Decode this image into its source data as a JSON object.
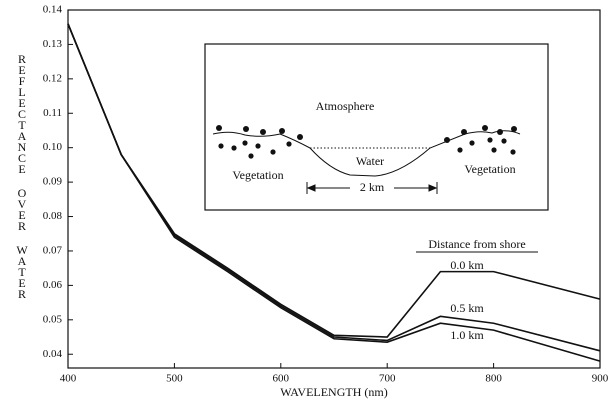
{
  "chart_data": {
    "type": "line",
    "x_label": "WAVELENGTH (nm)",
    "y_label": "REFLECTANCE OVER WATER",
    "legend_title": "Distance from shore",
    "x": [
      400,
      450,
      500,
      550,
      600,
      650,
      700,
      750,
      800,
      900
    ],
    "series": [
      {
        "name": "0.0 km",
        "color": "#111111",
        "values": [
          0.136,
          0.098,
          0.075,
          0.065,
          0.0545,
          0.0455,
          0.045,
          0.064,
          0.064,
          0.056
        ]
      },
      {
        "name": "0.5 km",
        "color": "#111111",
        "values": [
          0.136,
          0.098,
          0.0745,
          0.0645,
          0.054,
          0.045,
          0.044,
          0.051,
          0.049,
          0.041
        ]
      },
      {
        "name": "1.0 km",
        "color": "#111111",
        "values": [
          0.136,
          0.098,
          0.074,
          0.064,
          0.0535,
          0.0445,
          0.0435,
          0.049,
          0.047,
          0.038
        ]
      }
    ],
    "xlim": [
      400,
      900
    ],
    "xticks": [
      400,
      500,
      600,
      700,
      800,
      900
    ],
    "ylim": [
      0.036,
      0.14
    ],
    "yticks": [
      0.04,
      0.05,
      0.06,
      0.07,
      0.08,
      0.09,
      {
        "value": 0.1,
        "label": "0.10"
      },
      0.11,
      0.12,
      0.13,
      0.14
    ],
    "grid": false,
    "annotations": [
      "Atmosphere",
      "Water",
      "Vegetation",
      "Vegetation",
      "2 km"
    ]
  }
}
